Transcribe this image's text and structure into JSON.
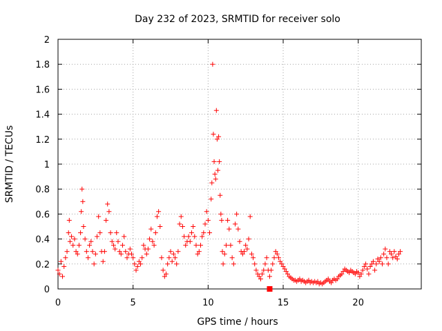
{
  "chart_data": {
    "type": "scatter",
    "title": "Day 232 of 2023, SRMTID for receiver solo",
    "xlabel": "GPS time / hours",
    "ylabel": "SRMTID / TECUs",
    "xlim": [
      0,
      24.2
    ],
    "ylim": [
      0,
      2
    ],
    "grid": true,
    "marker": "+",
    "color": "#ff0000",
    "x_ticks": [
      0,
      5,
      10,
      15,
      20
    ],
    "x_tick_labels": [
      "0",
      "5",
      "10",
      "15",
      "20"
    ],
    "y_ticks": [
      0,
      0.2,
      0.4,
      0.6,
      0.8,
      1,
      1.2,
      1.4,
      1.6,
      1.8,
      2
    ],
    "y_tick_labels": [
      "0",
      "0.2",
      "0.4",
      "0.6",
      "0.8",
      "1",
      "1.2",
      "1.4",
      "1.6",
      "1.8",
      "2"
    ],
    "series": [
      {
        "name": "SRMTID",
        "points": [
          [
            0.0,
            0.15
          ],
          [
            0.1,
            0.12
          ],
          [
            0.2,
            0.22
          ],
          [
            0.3,
            0.1
          ],
          [
            0.4,
            0.18
          ],
          [
            0.5,
            0.25
          ],
          [
            0.6,
            0.3
          ],
          [
            0.7,
            0.45
          ],
          [
            0.75,
            0.55
          ],
          [
            0.8,
            0.38
          ],
          [
            0.9,
            0.42
          ],
          [
            1.0,
            0.35
          ],
          [
            1.1,
            0.4
          ],
          [
            1.2,
            0.3
          ],
          [
            1.3,
            0.28
          ],
          [
            1.4,
            0.35
          ],
          [
            1.5,
            0.45
          ],
          [
            1.55,
            0.62
          ],
          [
            1.6,
            0.8
          ],
          [
            1.65,
            0.7
          ],
          [
            1.7,
            0.5
          ],
          [
            1.8,
            0.4
          ],
          [
            1.9,
            0.3
          ],
          [
            2.0,
            0.25
          ],
          [
            2.1,
            0.35
          ],
          [
            2.2,
            0.38
          ],
          [
            2.3,
            0.3
          ],
          [
            2.4,
            0.2
          ],
          [
            2.5,
            0.28
          ],
          [
            2.6,
            0.42
          ],
          [
            2.7,
            0.58
          ],
          [
            2.8,
            0.45
          ],
          [
            2.9,
            0.3
          ],
          [
            3.0,
            0.22
          ],
          [
            3.1,
            0.3
          ],
          [
            3.2,
            0.55
          ],
          [
            3.3,
            0.68
          ],
          [
            3.4,
            0.62
          ],
          [
            3.5,
            0.45
          ],
          [
            3.6,
            0.38
          ],
          [
            3.7,
            0.35
          ],
          [
            3.8,
            0.32
          ],
          [
            3.9,
            0.45
          ],
          [
            4.0,
            0.38
          ],
          [
            4.1,
            0.3
          ],
          [
            4.2,
            0.28
          ],
          [
            4.3,
            0.35
          ],
          [
            4.4,
            0.42
          ],
          [
            4.5,
            0.3
          ],
          [
            4.6,
            0.25
          ],
          [
            4.7,
            0.28
          ],
          [
            4.8,
            0.32
          ],
          [
            4.9,
            0.28
          ],
          [
            5.0,
            0.25
          ],
          [
            5.1,
            0.2
          ],
          [
            5.2,
            0.15
          ],
          [
            5.3,
            0.18
          ],
          [
            5.4,
            0.22
          ],
          [
            5.5,
            0.2
          ],
          [
            5.6,
            0.25
          ],
          [
            5.7,
            0.35
          ],
          [
            5.8,
            0.32
          ],
          [
            5.9,
            0.28
          ],
          [
            6.0,
            0.32
          ],
          [
            6.1,
            0.4
          ],
          [
            6.2,
            0.48
          ],
          [
            6.3,
            0.38
          ],
          [
            6.4,
            0.35
          ],
          [
            6.5,
            0.45
          ],
          [
            6.6,
            0.58
          ],
          [
            6.7,
            0.62
          ],
          [
            6.8,
            0.5
          ],
          [
            6.9,
            0.25
          ],
          [
            7.0,
            0.15
          ],
          [
            7.1,
            0.1
          ],
          [
            7.2,
            0.12
          ],
          [
            7.3,
            0.2
          ],
          [
            7.4,
            0.25
          ],
          [
            7.5,
            0.3
          ],
          [
            7.6,
            0.22
          ],
          [
            7.7,
            0.28
          ],
          [
            7.8,
            0.25
          ],
          [
            7.9,
            0.2
          ],
          [
            8.0,
            0.3
          ],
          [
            8.1,
            0.52
          ],
          [
            8.2,
            0.58
          ],
          [
            8.3,
            0.5
          ],
          [
            8.4,
            0.42
          ],
          [
            8.5,
            0.35
          ],
          [
            8.6,
            0.38
          ],
          [
            8.7,
            0.42
          ],
          [
            8.8,
            0.38
          ],
          [
            8.9,
            0.45
          ],
          [
            9.0,
            0.5
          ],
          [
            9.1,
            0.42
          ],
          [
            9.2,
            0.35
          ],
          [
            9.3,
            0.28
          ],
          [
            9.4,
            0.3
          ],
          [
            9.5,
            0.35
          ],
          [
            9.6,
            0.42
          ],
          [
            9.7,
            0.45
          ],
          [
            9.8,
            0.52
          ],
          [
            9.9,
            0.62
          ],
          [
            10.0,
            0.55
          ],
          [
            10.1,
            0.45
          ],
          [
            10.2,
            0.72
          ],
          [
            10.25,
            0.85
          ],
          [
            10.3,
            1.8
          ],
          [
            10.35,
            1.24
          ],
          [
            10.4,
            1.02
          ],
          [
            10.45,
            0.92
          ],
          [
            10.5,
            0.88
          ],
          [
            10.55,
            1.43
          ],
          [
            10.6,
            1.2
          ],
          [
            10.65,
            0.95
          ],
          [
            10.7,
            1.22
          ],
          [
            10.75,
            1.02
          ],
          [
            10.8,
            0.75
          ],
          [
            10.85,
            0.6
          ],
          [
            10.9,
            0.55
          ],
          [
            10.95,
            0.3
          ],
          [
            11.0,
            0.2
          ],
          [
            11.1,
            0.28
          ],
          [
            11.2,
            0.35
          ],
          [
            11.3,
            0.55
          ],
          [
            11.4,
            0.48
          ],
          [
            11.5,
            0.35
          ],
          [
            11.6,
            0.25
          ],
          [
            11.7,
            0.2
          ],
          [
            11.8,
            0.52
          ],
          [
            11.9,
            0.6
          ],
          [
            12.0,
            0.48
          ],
          [
            12.1,
            0.38
          ],
          [
            12.2,
            0.3
          ],
          [
            12.3,
            0.28
          ],
          [
            12.4,
            0.3
          ],
          [
            12.5,
            0.35
          ],
          [
            12.6,
            0.32
          ],
          [
            12.7,
            0.4
          ],
          [
            12.8,
            0.58
          ],
          [
            12.9,
            0.28
          ],
          [
            13.0,
            0.25
          ],
          [
            13.1,
            0.2
          ],
          [
            13.2,
            0.15
          ],
          [
            13.3,
            0.12
          ],
          [
            13.4,
            0.1
          ],
          [
            13.5,
            0.08
          ],
          [
            13.6,
            0.12
          ],
          [
            13.7,
            0.15
          ],
          [
            13.8,
            0.2
          ],
          [
            13.9,
            0.25
          ],
          [
            14.0,
            0.15
          ],
          [
            14.1,
            0.1
          ],
          [
            14.2,
            0.15
          ],
          [
            14.3,
            0.2
          ],
          [
            14.4,
            0.25
          ],
          [
            14.5,
            0.3
          ],
          [
            14.6,
            0.28
          ],
          [
            14.7,
            0.25
          ],
          [
            14.8,
            0.22
          ],
          [
            14.9,
            0.2
          ],
          [
            15.0,
            0.18
          ],
          [
            15.1,
            0.16
          ],
          [
            15.2,
            0.14
          ],
          [
            15.3,
            0.12
          ],
          [
            15.4,
            0.1
          ],
          [
            15.5,
            0.09
          ],
          [
            15.6,
            0.08
          ],
          [
            15.7,
            0.07
          ],
          [
            15.8,
            0.07
          ],
          [
            15.9,
            0.06
          ],
          [
            16.0,
            0.07
          ],
          [
            16.1,
            0.08
          ],
          [
            16.2,
            0.06
          ],
          [
            16.3,
            0.07
          ],
          [
            16.4,
            0.06
          ],
          [
            16.5,
            0.05
          ],
          [
            16.6,
            0.06
          ],
          [
            16.7,
            0.07
          ],
          [
            16.8,
            0.05
          ],
          [
            16.9,
            0.06
          ],
          [
            17.0,
            0.05
          ],
          [
            17.1,
            0.06
          ],
          [
            17.2,
            0.05
          ],
          [
            17.3,
            0.06
          ],
          [
            17.4,
            0.04
          ],
          [
            17.5,
            0.05
          ],
          [
            17.6,
            0.04
          ],
          [
            17.7,
            0.05
          ],
          [
            17.8,
            0.06
          ],
          [
            17.9,
            0.07
          ],
          [
            18.0,
            0.08
          ],
          [
            18.1,
            0.06
          ],
          [
            18.2,
            0.05
          ],
          [
            18.3,
            0.07
          ],
          [
            18.4,
            0.08
          ],
          [
            18.5,
            0.07
          ],
          [
            18.6,
            0.08
          ],
          [
            18.7,
            0.1
          ],
          [
            18.8,
            0.11
          ],
          [
            18.9,
            0.12
          ],
          [
            19.0,
            0.14
          ],
          [
            19.1,
            0.16
          ],
          [
            19.2,
            0.15
          ],
          [
            19.3,
            0.14
          ],
          [
            19.4,
            0.13
          ],
          [
            19.5,
            0.15
          ],
          [
            19.6,
            0.14
          ],
          [
            19.7,
            0.13
          ],
          [
            19.8,
            0.12
          ],
          [
            19.9,
            0.14
          ],
          [
            20.0,
            0.13
          ],
          [
            20.1,
            0.1
          ],
          [
            20.2,
            0.12
          ],
          [
            20.3,
            0.15
          ],
          [
            20.4,
            0.18
          ],
          [
            20.5,
            0.2
          ],
          [
            20.6,
            0.16
          ],
          [
            20.7,
            0.12
          ],
          [
            20.8,
            0.18
          ],
          [
            20.9,
            0.2
          ],
          [
            21.0,
            0.22
          ],
          [
            21.1,
            0.15
          ],
          [
            21.2,
            0.2
          ],
          [
            21.3,
            0.24
          ],
          [
            21.4,
            0.22
          ],
          [
            21.5,
            0.25
          ],
          [
            21.6,
            0.2
          ],
          [
            21.7,
            0.28
          ],
          [
            21.8,
            0.32
          ],
          [
            21.9,
            0.25
          ],
          [
            22.0,
            0.2
          ],
          [
            22.1,
            0.3
          ],
          [
            22.2,
            0.28
          ],
          [
            22.3,
            0.25
          ],
          [
            22.4,
            0.3
          ],
          [
            22.5,
            0.26
          ],
          [
            22.6,
            0.24
          ],
          [
            22.7,
            0.28
          ],
          [
            22.8,
            0.3
          ]
        ]
      }
    ],
    "special_markers": [
      {
        "x": 14.1,
        "y": 0.0,
        "shape": "square"
      }
    ]
  }
}
